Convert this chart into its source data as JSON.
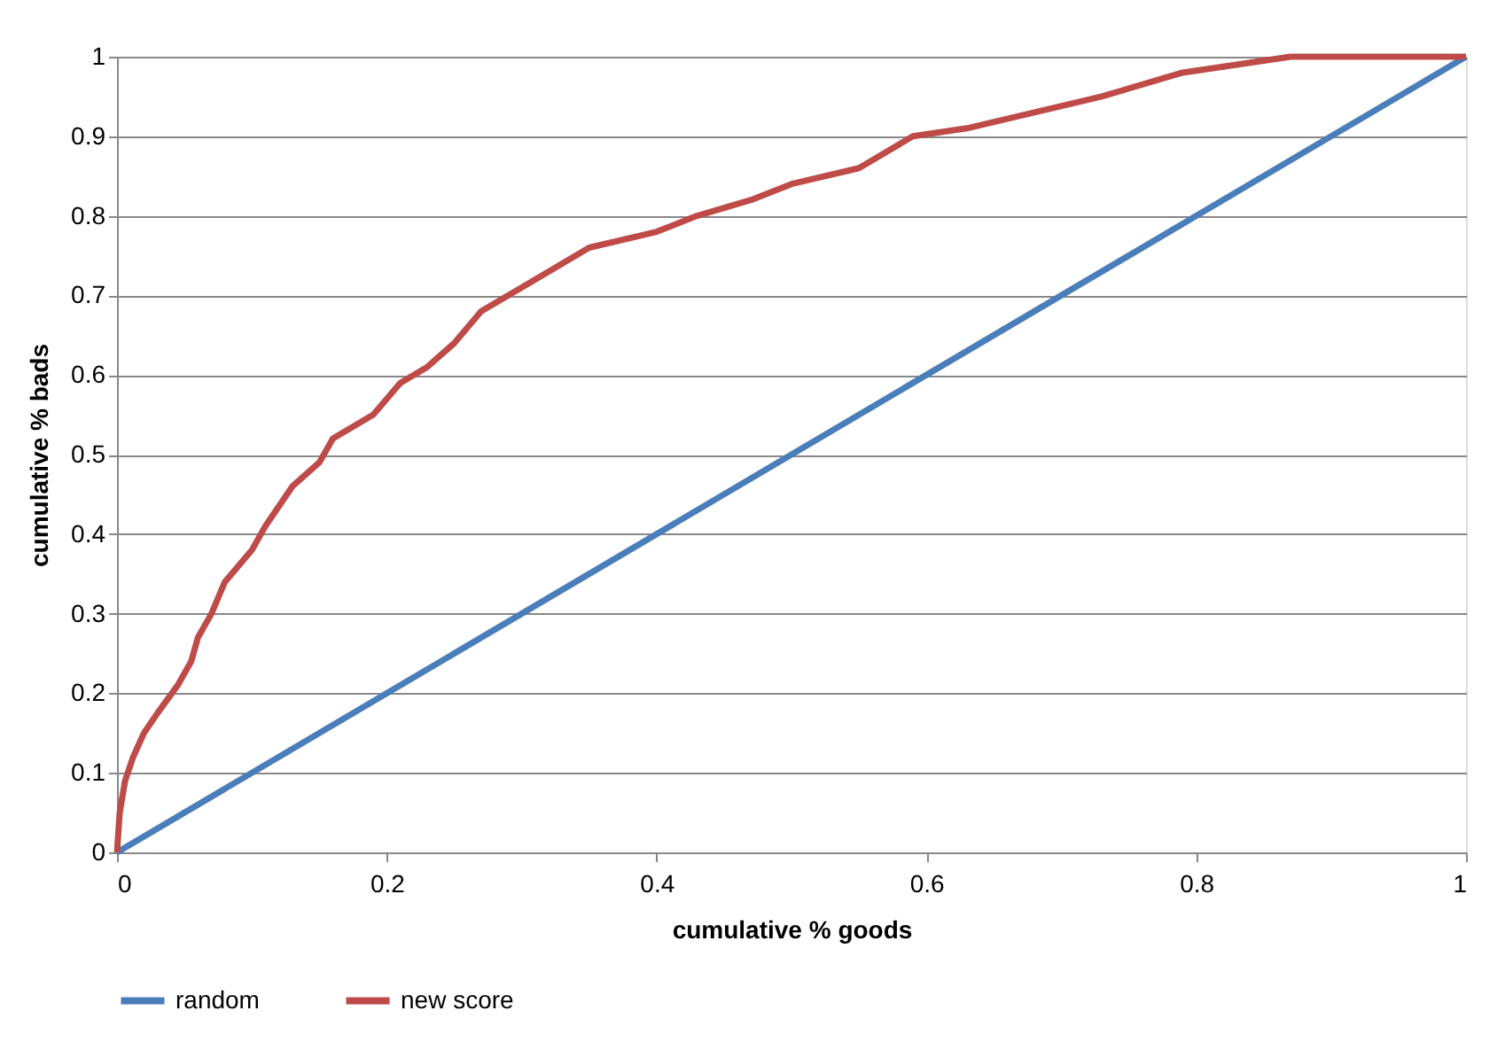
{
  "chart_data": {
    "type": "line",
    "xlabel": "cumulative % goods",
    "ylabel": "cumulative % bads",
    "xlim": [
      0,
      1
    ],
    "ylim": [
      0,
      1
    ],
    "xticks": [
      0,
      0.2,
      0.4,
      0.6,
      0.8,
      1
    ],
    "yticks": [
      0,
      0.1,
      0.2,
      0.3,
      0.4,
      0.5,
      0.6,
      0.7,
      0.8,
      0.9,
      1
    ],
    "grid": "y",
    "legend": "bottom",
    "marker": "none",
    "line_style": "solid",
    "series": [
      {
        "name": "random",
        "color": "#4a7ebb",
        "x": [
          0,
          1
        ],
        "values": [
          0,
          1
        ]
      },
      {
        "name": "new score",
        "color": "#be4b48",
        "x": [
          0,
          0.002,
          0.006,
          0.012,
          0.02,
          0.03,
          0.045,
          0.055,
          0.06,
          0.07,
          0.08,
          0.1,
          0.11,
          0.13,
          0.15,
          0.16,
          0.19,
          0.21,
          0.23,
          0.25,
          0.27,
          0.3,
          0.33,
          0.35,
          0.4,
          0.43,
          0.47,
          0.5,
          0.55,
          0.59,
          0.63,
          0.68,
          0.73,
          0.79,
          0.83,
          0.87,
          1
        ],
        "values": [
          0,
          0.05,
          0.09,
          0.12,
          0.15,
          0.175,
          0.21,
          0.24,
          0.27,
          0.3,
          0.34,
          0.38,
          0.41,
          0.46,
          0.49,
          0.52,
          0.55,
          0.59,
          0.61,
          0.64,
          0.68,
          0.71,
          0.74,
          0.76,
          0.78,
          0.8,
          0.82,
          0.84,
          0.86,
          0.9,
          0.91,
          0.93,
          0.95,
          0.98,
          0.99,
          1.0,
          1.0
        ]
      }
    ]
  }
}
